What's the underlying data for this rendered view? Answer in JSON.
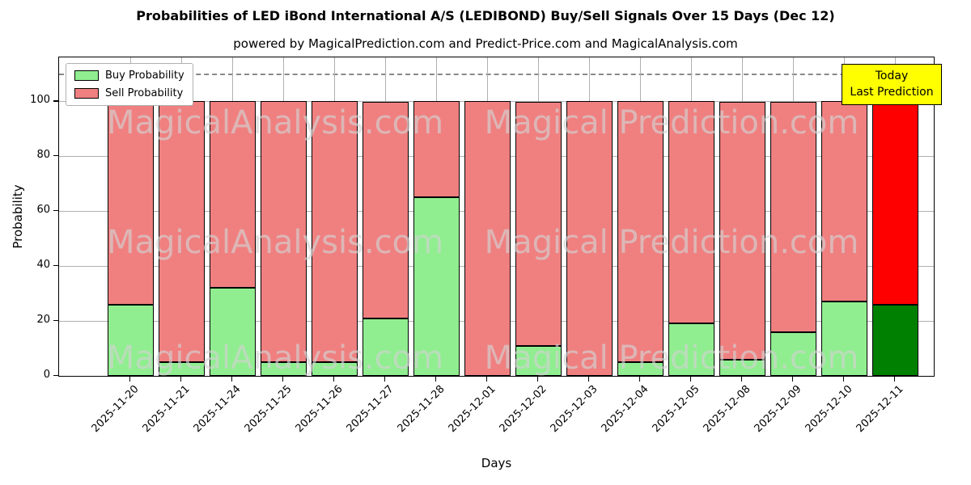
{
  "title": "Probabilities of LED iBond International A/S (LEDIBOND) Buy/Sell Signals Over 15 Days (Dec 12)",
  "subtitle": "powered by MagicalPrediction.com and Predict-Price.com and MagicalAnalysis.com",
  "xlabel": "Days",
  "ylabel": "Probability",
  "legend": {
    "buy": "Buy Probability",
    "sell": "Sell Probability"
  },
  "annotation": {
    "line1": "Today",
    "line2": "Last Prediction",
    "bg": "#ffff00"
  },
  "watermarks": [
    "MagicalAnalysis.com",
    "Magical Prediction.com"
  ],
  "chart_data": {
    "type": "bar",
    "stacked": true,
    "title": "Probabilities of LED iBond International A/S (LEDIBOND) Buy/Sell Signals Over 15 Days (Dec 12)",
    "xlabel": "Days",
    "ylabel": "Probability",
    "categories": [
      "2025-11-20",
      "2025-11-21",
      "2025-11-24",
      "2025-11-25",
      "2025-11-26",
      "2025-11-27",
      "2025-11-28",
      "2025-12-01",
      "2025-12-02",
      "2025-12-03",
      "2025-12-04",
      "2025-12-05",
      "2025-12-08",
      "2025-12-09",
      "2025-12-10",
      "2025-12-11"
    ],
    "series": [
      {
        "name": "Buy Probability",
        "color": "#90ee90",
        "values": [
          26,
          5,
          32,
          5,
          5,
          21,
          65,
          0,
          11,
          0,
          5,
          19,
          6,
          16,
          27,
          26
        ]
      },
      {
        "name": "Sell Probability",
        "color": "#f08080",
        "values": [
          74,
          95,
          68,
          95,
          95,
          79,
          35,
          100,
          89,
          100,
          95,
          81,
          94,
          84,
          73,
          74
        ]
      }
    ],
    "highlight_last": {
      "buy_color": "#008000",
      "sell_color": "#ff0000"
    },
    "yticks": [
      0,
      20,
      40,
      60,
      80,
      100
    ],
    "ylim": [
      0,
      116
    ],
    "dashed_line_y": 110,
    "grid": true,
    "legend_position": "upper left"
  }
}
